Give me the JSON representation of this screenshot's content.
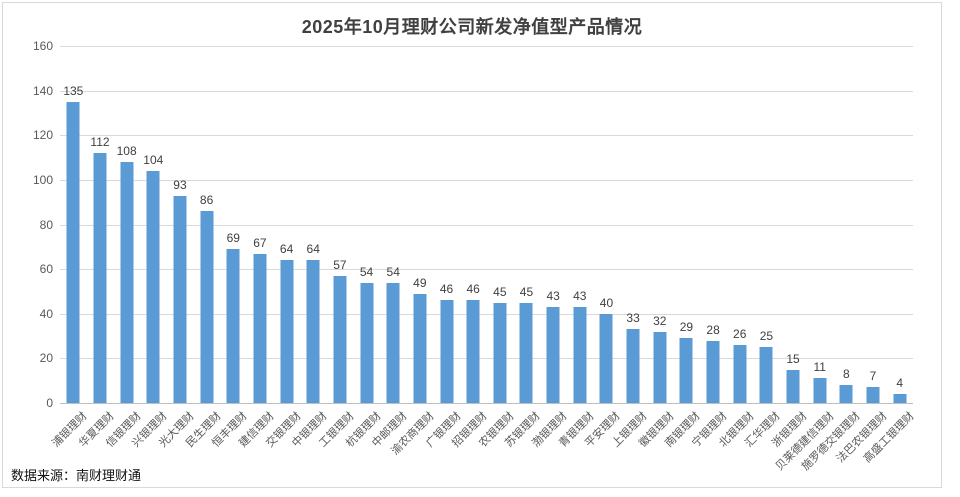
{
  "chart_data": {
    "type": "bar",
    "title": "2025年10月理财公司新发净值型产品情况",
    "source_note": "数据来源：南财理财通",
    "categories": [
      "浦银理财",
      "华夏理财",
      "信银理财",
      "兴银理财",
      "光大理财",
      "民生理财",
      "恒丰理财",
      "建信理财",
      "交银理财",
      "中银理财",
      "工银理财",
      "杭银理财",
      "中邮理财",
      "渝农商理财",
      "广银理财",
      "招银理财",
      "农银理财",
      "苏银理财",
      "渤银理财",
      "青银理财",
      "平安理财",
      "上银理财",
      "徽银理财",
      "南银理财",
      "宁银理财",
      "北银理财",
      "汇华理财",
      "浙银理财",
      "贝莱德建信理财",
      "施罗德交银理财",
      "法巴农银理财",
      "高盛工银理财"
    ],
    "values": [
      135,
      112,
      108,
      104,
      93,
      86,
      69,
      67,
      64,
      64,
      57,
      54,
      54,
      49,
      46,
      46,
      45,
      45,
      43,
      43,
      40,
      33,
      32,
      29,
      28,
      26,
      25,
      15,
      11,
      8,
      7,
      4
    ],
    "value_labels_shown": true,
    "xlabel": "",
    "ylabel": "",
    "ylim": [
      0,
      160
    ],
    "yticks": [
      0,
      20,
      40,
      60,
      80,
      100,
      120,
      140,
      160
    ],
    "grid": true,
    "legend": "none"
  },
  "colors": {
    "bar": "#5b9bd5",
    "title_text": "#404040",
    "axis_text": "#595959",
    "value_label_text": "#404040",
    "gridline": "#d9d9d9",
    "axis_line": "#bfbfbf",
    "frame_border": "#d9d9d9",
    "background": "#ffffff"
  }
}
